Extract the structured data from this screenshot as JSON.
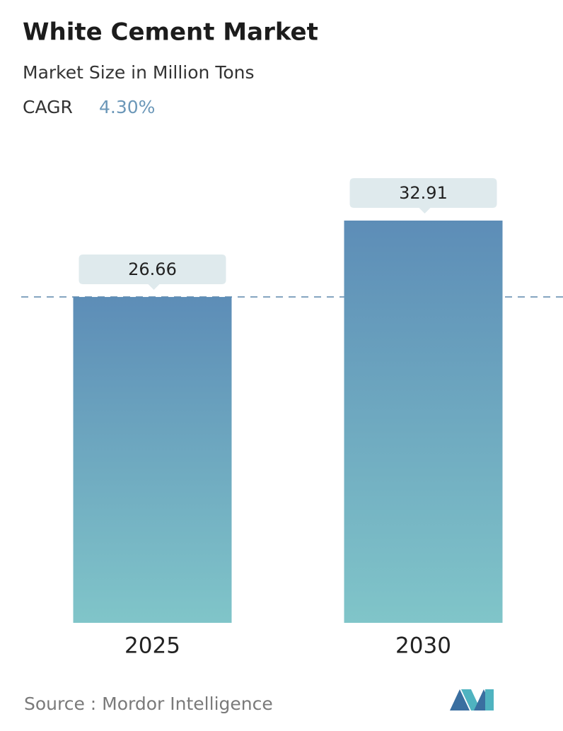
{
  "chart_data": {
    "type": "bar",
    "title": "White Cement Market",
    "subtitle": "Market Size in Million Tons",
    "cagr_label": "CAGR",
    "cagr_value": "4.30%",
    "categories": [
      "2025",
      "2030"
    ],
    "values": [
      26.66,
      32.91
    ],
    "source": "Source :  Mordor Intelligence"
  }
}
